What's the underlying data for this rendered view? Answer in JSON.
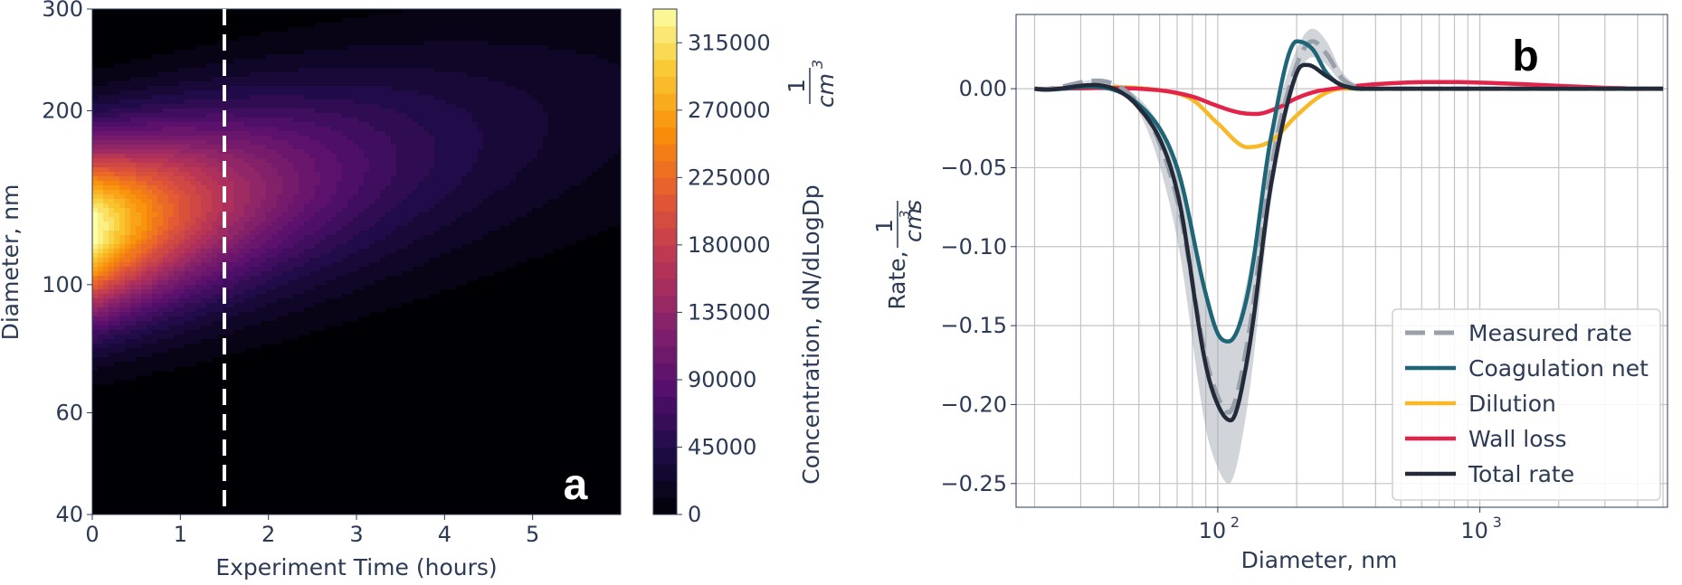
{
  "chart_data": [
    {
      "id": "panel-a",
      "type": "heatmap",
      "panel_label": "a",
      "xlabel": "Experiment Time (hours)",
      "ylabel": "Diameter, nm",
      "xlim": [
        0,
        6
      ],
      "ylim": [
        40,
        300
      ],
      "yscale": "log",
      "xticks": [
        0,
        1,
        2,
        3,
        4,
        5
      ],
      "yticks": [
        40,
        60,
        100,
        200,
        300
      ],
      "annotation_vline_x": 1.5,
      "colormap": "inferno",
      "colorbar": {
        "label": "Concentration, dN/dLogDp",
        "unit_numerator": "1",
        "unit_denominator": "cm",
        "unit_exponent": "3",
        "ticks": [
          0,
          45000,
          90000,
          135000,
          180000,
          225000,
          270000,
          315000
        ],
        "max": 337500,
        "levels": 30
      },
      "peak": {
        "time_hours": 0,
        "diameter_nm": 125,
        "concentration": 335000
      }
    },
    {
      "id": "panel-b",
      "type": "line",
      "panel_label": "b",
      "xlabel": "Diameter, nm",
      "ylabel_prefix": "Rate, ",
      "ylabel_unit_num": "1",
      "ylabel_unit_den": "cm",
      "ylabel_unit_exp": "3",
      "ylabel_unit_suffix": "s",
      "xscale": "log",
      "xlim": [
        17,
        5200
      ],
      "ylim": [
        -0.265,
        0.047
      ],
      "yticks": [
        0.0,
        -0.05,
        -0.1,
        -0.15,
        -0.2,
        -0.25
      ],
      "xtick_base": "10",
      "xticks_exp": [
        "2",
        "3"
      ],
      "legend_position": "lower-right",
      "grid": true,
      "legend": [
        {
          "name": "Measured rate",
          "color": "#9aa0aa",
          "style": "dashed"
        },
        {
          "name": "Coagulation net",
          "color": "#1e6577",
          "style": "solid"
        },
        {
          "name": "Dilution",
          "color": "#f8b928",
          "style": "solid"
        },
        {
          "name": "Wall loss",
          "color": "#e3244a",
          "style": "solid"
        },
        {
          "name": "Total rate",
          "color": "#232a39",
          "style": "solid"
        }
      ],
      "series": [
        {
          "name": "Measured rate",
          "x": [
            20,
            50,
            70,
            90,
            100,
            110,
            130,
            160,
            200,
            230,
            260,
            300,
            400,
            5000
          ],
          "y": [
            0,
            -0.01,
            -0.07,
            -0.17,
            -0.195,
            -0.205,
            -0.16,
            -0.05,
            0.015,
            0.03,
            0.022,
            0.006,
            0,
            0
          ]
        },
        {
          "name": "Coagulation net",
          "x": [
            20,
            50,
            70,
            90,
            100,
            110,
            130,
            160,
            200,
            230,
            260,
            300,
            400,
            5000
          ],
          "y": [
            0,
            -0.01,
            -0.05,
            -0.13,
            -0.155,
            -0.16,
            -0.13,
            -0.03,
            0.03,
            0.025,
            0.01,
            0.002,
            0,
            0
          ]
        },
        {
          "name": "Dilution",
          "x": [
            20,
            60,
            80,
            100,
            130,
            160,
            200,
            250,
            300,
            5000
          ],
          "y": [
            0,
            -0.001,
            -0.007,
            -0.022,
            -0.037,
            -0.033,
            -0.017,
            -0.004,
            0,
            0
          ]
        },
        {
          "name": "Wall loss",
          "x": [
            20,
            60,
            80,
            100,
            120,
            140,
            170,
            200,
            250,
            5000
          ],
          "y": [
            0,
            -0.001,
            -0.005,
            -0.011,
            -0.015,
            -0.016,
            -0.012,
            -0.006,
            -0.001,
            0
          ]
        },
        {
          "name": "Total rate",
          "x": [
            20,
            50,
            70,
            90,
            100,
            112,
            130,
            160,
            200,
            220,
            260,
            300,
            400,
            5000
          ],
          "y": [
            0,
            -0.012,
            -0.065,
            -0.175,
            -0.2,
            -0.21,
            -0.17,
            -0.06,
            0.01,
            0.015,
            0.008,
            0.002,
            0,
            0
          ]
        }
      ],
      "measured_band": {
        "x": [
          20,
          50,
          70,
          90,
          100,
          110,
          130,
          160,
          200,
          230,
          260,
          300,
          400,
          5000
        ],
        "lower": [
          0,
          -0.015,
          -0.095,
          -0.215,
          -0.24,
          -0.25,
          -0.2,
          -0.07,
          0.005,
          0.02,
          0.015,
          0.003,
          0,
          0
        ],
        "upper": [
          0,
          -0.006,
          -0.05,
          -0.13,
          -0.155,
          -0.16,
          -0.12,
          -0.03,
          0.025,
          0.038,
          0.03,
          0.01,
          0,
          0
        ]
      }
    }
  ]
}
